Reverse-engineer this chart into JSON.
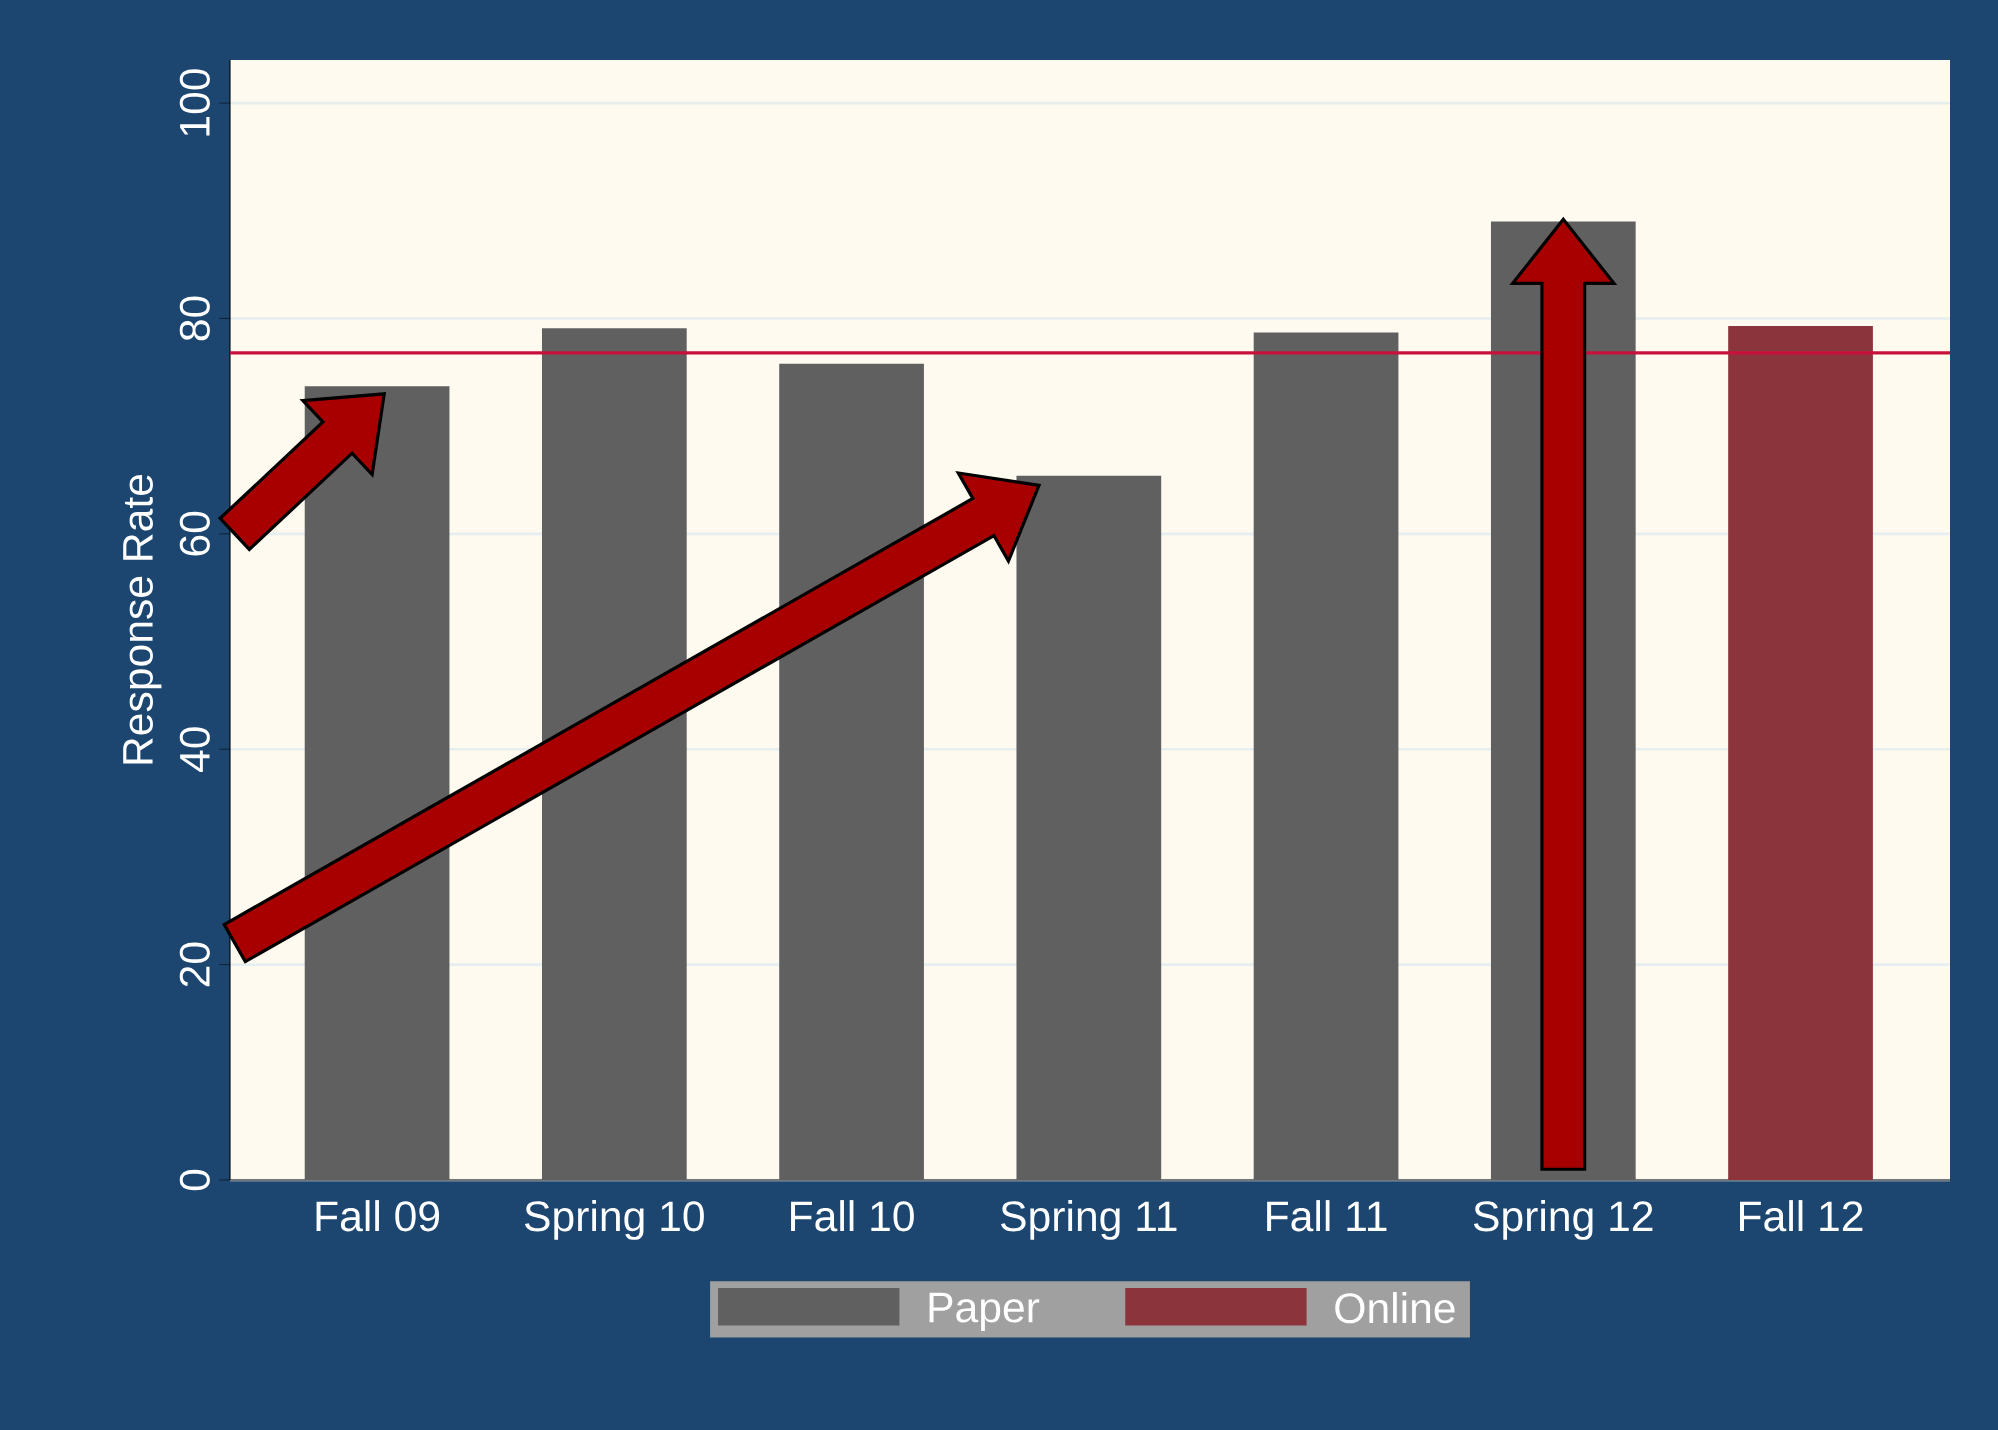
{
  "chart_data": {
    "type": "bar",
    "ylabel": "Response Rate",
    "categories": [
      "Fall 09",
      "Spring 10",
      "Fall 10",
      "Spring 11",
      "Fall 11",
      "Spring 12",
      "Fall 12"
    ],
    "series": [
      {
        "name": "Paper",
        "color": "#606060",
        "values": [
          73.7,
          79.1,
          75.8,
          65.4,
          78.7,
          89.0,
          null
        ]
      },
      {
        "name": "Online",
        "color": "#8b343c",
        "values": [
          null,
          null,
          null,
          null,
          null,
          null,
          79.3
        ]
      }
    ],
    "ylim": [
      0,
      104
    ],
    "yticks": [
      0,
      20,
      40,
      60,
      80,
      100
    ],
    "grid": "y",
    "legend": "bottom",
    "ref_lines": [
      {
        "axis": "y",
        "value": 76.8,
        "color": "#c8103c"
      }
    ]
  }
}
